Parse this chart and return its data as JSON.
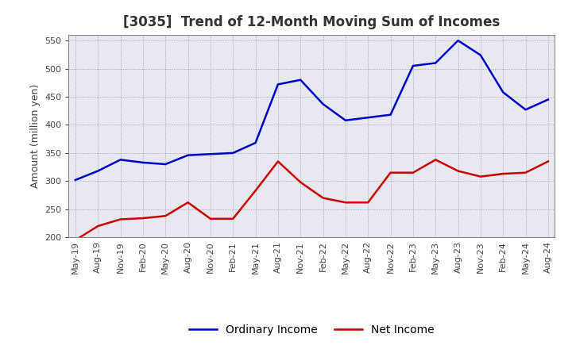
{
  "title": "[3035]  Trend of 12-Month Moving Sum of Incomes",
  "ylabel": "Amount (million yen)",
  "ylim": [
    200,
    560
  ],
  "yticks": [
    200,
    250,
    300,
    350,
    400,
    450,
    500,
    550
  ],
  "background_color": "#ffffff",
  "plot_bg_color": "#e8e8f0",
  "grid_color": "#aaaaaa",
  "ordinary_income_color": "#0000cc",
  "net_income_color": "#cc0000",
  "ordinary_income_label": "Ordinary Income",
  "net_income_label": "Net Income",
  "x_labels": [
    "May-19",
    "Aug-19",
    "Nov-19",
    "Feb-20",
    "May-20",
    "Aug-20",
    "Nov-20",
    "Feb-21",
    "May-21",
    "Aug-21",
    "Nov-21",
    "Feb-22",
    "May-22",
    "Aug-22",
    "Nov-22",
    "Feb-23",
    "May-23",
    "Aug-23",
    "Nov-23",
    "Feb-24",
    "May-24",
    "Aug-24"
  ],
  "ordinary_income": [
    302,
    318,
    338,
    333,
    330,
    346,
    348,
    350,
    368,
    472,
    480,
    437,
    408,
    413,
    418,
    505,
    510,
    550,
    524,
    458,
    427,
    445
  ],
  "net_income": [
    195,
    220,
    232,
    234,
    238,
    262,
    233,
    233,
    283,
    335,
    298,
    270,
    262,
    262,
    315,
    315,
    338,
    318,
    308,
    313,
    315,
    335
  ],
  "title_color": "#333333",
  "title_fontsize": 12,
  "legend_fontsize": 10,
  "tick_fontsize": 8,
  "ylabel_fontsize": 9
}
